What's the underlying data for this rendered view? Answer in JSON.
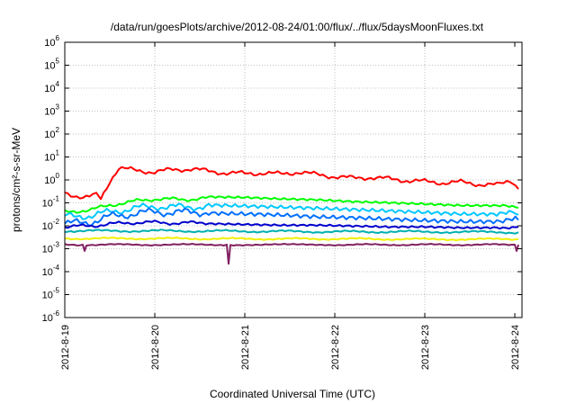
{
  "chart_data": {
    "type": "line",
    "title": "/data/run/goesPlots/archive/2012-08-24/01:00/flux/../flux/5daysMoonFluxes.txt",
    "xlabel": "Coordinated Universal Time (UTC)",
    "ylabel": "protons/cm²-s-sr-MeV",
    "y_scale": "log",
    "ylim": [
      1e-06,
      1000000.0
    ],
    "xlim": [
      "2012-08-19 00:00",
      "2012-08-24 01:00"
    ],
    "grid": true,
    "x_tick_labels": [
      "2012-8-19",
      "2012-8-20",
      "2012-8-21",
      "2012-8-22",
      "2012-8-23",
      "2012-8-24"
    ],
    "y_tick_labels": [
      "10-6",
      "10-5",
      "10-4",
      "10-3",
      "10-2",
      "10-1",
      "100",
      "101",
      "102",
      "103",
      "104",
      "105",
      "106"
    ],
    "series": [
      {
        "color": "#ff0000",
        "x": [
          0,
          0.2,
          0.35,
          0.4,
          0.5,
          0.6,
          0.8,
          1.0,
          1.2,
          1.4,
          1.6,
          1.8,
          2.0,
          2.2,
          2.4,
          2.6,
          2.8,
          3.0,
          3.2,
          3.4,
          3.6,
          3.8,
          4.0,
          4.2,
          4.4,
          4.6,
          4.8,
          4.95,
          5.04
        ],
        "y": [
          0.28,
          0.17,
          0.3,
          0.15,
          0.9,
          3.2,
          2.6,
          2.2,
          2.8,
          3.0,
          2.4,
          2.0,
          1.9,
          2.0,
          1.8,
          2.2,
          1.7,
          1.4,
          1.2,
          1.3,
          1.1,
          0.95,
          0.85,
          0.75,
          0.8,
          0.65,
          0.6,
          0.75,
          0.4
        ]
      },
      {
        "color": "#00ff00",
        "x": [
          0,
          0.3,
          0.5,
          0.8,
          1.0,
          1.3,
          1.6,
          2.0,
          2.4,
          2.8,
          3.2,
          3.6,
          4.0,
          4.4,
          4.8,
          5.04
        ],
        "y": [
          0.04,
          0.05,
          0.08,
          0.12,
          0.15,
          0.14,
          0.16,
          0.15,
          0.13,
          0.12,
          0.1,
          0.09,
          0.08,
          0.07,
          0.07,
          0.06
        ]
      },
      {
        "color": "#00c8ff",
        "x": [
          0,
          0.3,
          0.5,
          0.8,
          1.0,
          1.3,
          1.6,
          2.0,
          2.4,
          2.8,
          3.2,
          3.6,
          4.0,
          4.4,
          4.8,
          5.04
        ],
        "y": [
          0.025,
          0.028,
          0.04,
          0.06,
          0.07,
          0.065,
          0.07,
          0.065,
          0.06,
          0.055,
          0.05,
          0.045,
          0.04,
          0.035,
          0.035,
          0.03
        ]
      },
      {
        "color": "#0070ff",
        "x": [
          0,
          0.3,
          0.5,
          0.8,
          1.0,
          1.3,
          1.6,
          2.0,
          2.4,
          2.8,
          3.2,
          3.6,
          4.0,
          4.4,
          4.8,
          5.04
        ],
        "y": [
          0.012,
          0.015,
          0.025,
          0.035,
          0.04,
          0.038,
          0.04,
          0.038,
          0.035,
          0.03,
          0.028,
          0.025,
          0.022,
          0.02,
          0.02,
          0.018
        ]
      },
      {
        "color": "#0000cc",
        "x": [
          0,
          0.3,
          0.5,
          0.8,
          1.0,
          1.3,
          1.6,
          2.0,
          2.4,
          2.8,
          3.2,
          3.6,
          4.0,
          4.4,
          4.8,
          5.04
        ],
        "y": [
          0.009,
          0.01,
          0.012,
          0.014,
          0.014,
          0.013,
          0.014,
          0.013,
          0.012,
          0.012,
          0.011,
          0.01,
          0.01,
          0.009,
          0.009,
          0.009
        ]
      },
      {
        "color": "#00b0b0",
        "x": [
          0,
          1.0,
          2.0,
          3.0,
          4.0,
          5.04
        ],
        "y": [
          0.006,
          0.006,
          0.0058,
          0.0055,
          0.0055,
          0.0052
        ]
      },
      {
        "color": "#f0f000",
        "x": [
          0,
          1.0,
          2.0,
          3.0,
          4.0,
          5.04
        ],
        "y": [
          0.0028,
          0.0028,
          0.0027,
          0.0027,
          0.0026,
          0.0026
        ]
      },
      {
        "color": "#802060",
        "x": [
          0,
          0.2,
          0.22,
          0.24,
          1.0,
          1.8,
          1.82,
          1.84,
          3.0,
          4.0,
          5.0,
          5.02,
          5.04
        ],
        "y": [
          0.0015,
          0.0015,
          0.0008,
          0.0015,
          0.0015,
          0.0015,
          0.00022,
          0.0015,
          0.0015,
          0.0015,
          0.0015,
          0.0008,
          0.0015
        ]
      }
    ]
  }
}
